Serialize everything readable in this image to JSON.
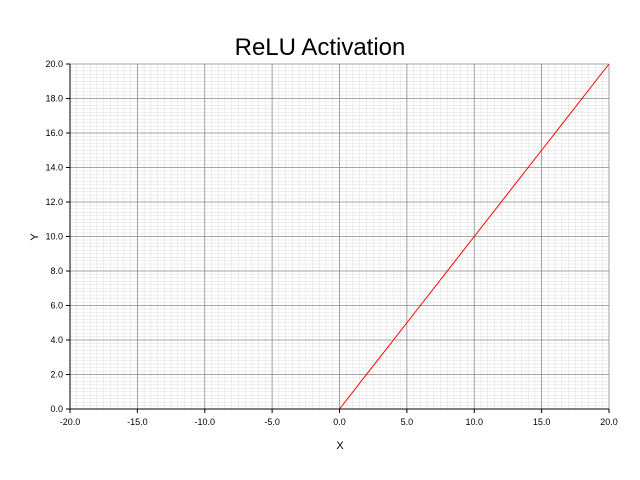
{
  "chart_data": {
    "type": "line",
    "title": "ReLU Activation",
    "xlabel": "X",
    "ylabel": "Y",
    "xlim": [
      -20.0,
      20.0
    ],
    "ylim": [
      0.0,
      20.0
    ],
    "xticks": [
      -20.0,
      -15.0,
      -10.0,
      -5.0,
      0.0,
      5.0,
      10.0,
      15.0,
      20.0
    ],
    "xtick_labels": [
      "-20.0",
      "-15.0",
      "-10.0",
      "-5.0",
      "0.0",
      "5.0",
      "10.0",
      "15.0",
      "20.0"
    ],
    "yticks": [
      0.0,
      2.0,
      4.0,
      6.0,
      8.0,
      10.0,
      12.0,
      14.0,
      16.0,
      18.0,
      20.0
    ],
    "ytick_labels": [
      "0.0",
      "2.0",
      "4.0",
      "6.0",
      "8.0",
      "10.0",
      "12.0",
      "14.0",
      "16.0",
      "18.0",
      "20.0"
    ],
    "grid": true,
    "minor_grid": true,
    "series": [
      {
        "color": "#ff0000",
        "x": [
          -20.0,
          -10.0,
          0.0,
          5.0,
          10.0,
          15.0,
          20.0
        ],
        "y": [
          0.0,
          0.0,
          0.0,
          5.0,
          10.0,
          15.0,
          20.0
        ]
      }
    ]
  },
  "colors": {
    "background": "#ffffff",
    "major_grid": "#8c8c8c",
    "minor_grid": "#dcdcdc",
    "axis": "#000000",
    "series_line": "#ff0000"
  }
}
